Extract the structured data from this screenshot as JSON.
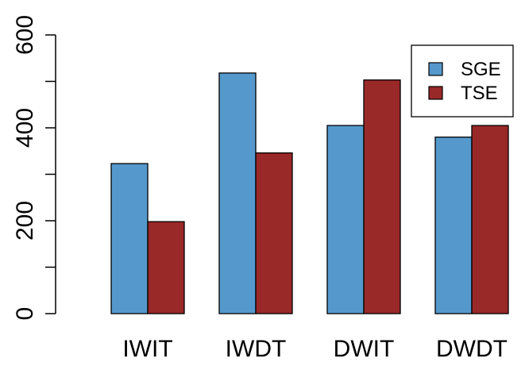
{
  "chart_data": {
    "type": "bar",
    "categories": [
      "IWIT",
      "IWDT",
      "DWIT",
      "DWDT"
    ],
    "series": [
      {
        "name": "SGE",
        "color": "#5599CC",
        "values": [
          323,
          518,
          405,
          380
        ]
      },
      {
        "name": "TSE",
        "color": "#992828",
        "values": [
          198,
          346,
          503,
          405
        ]
      }
    ],
    "ylim": [
      0,
      600
    ],
    "yticks": [
      0,
      200,
      400,
      600
    ],
    "yminor": [
      100,
      300,
      500
    ],
    "grid": false,
    "legend_position": "top-right",
    "title": "",
    "xlabel": "",
    "ylabel": ""
  }
}
